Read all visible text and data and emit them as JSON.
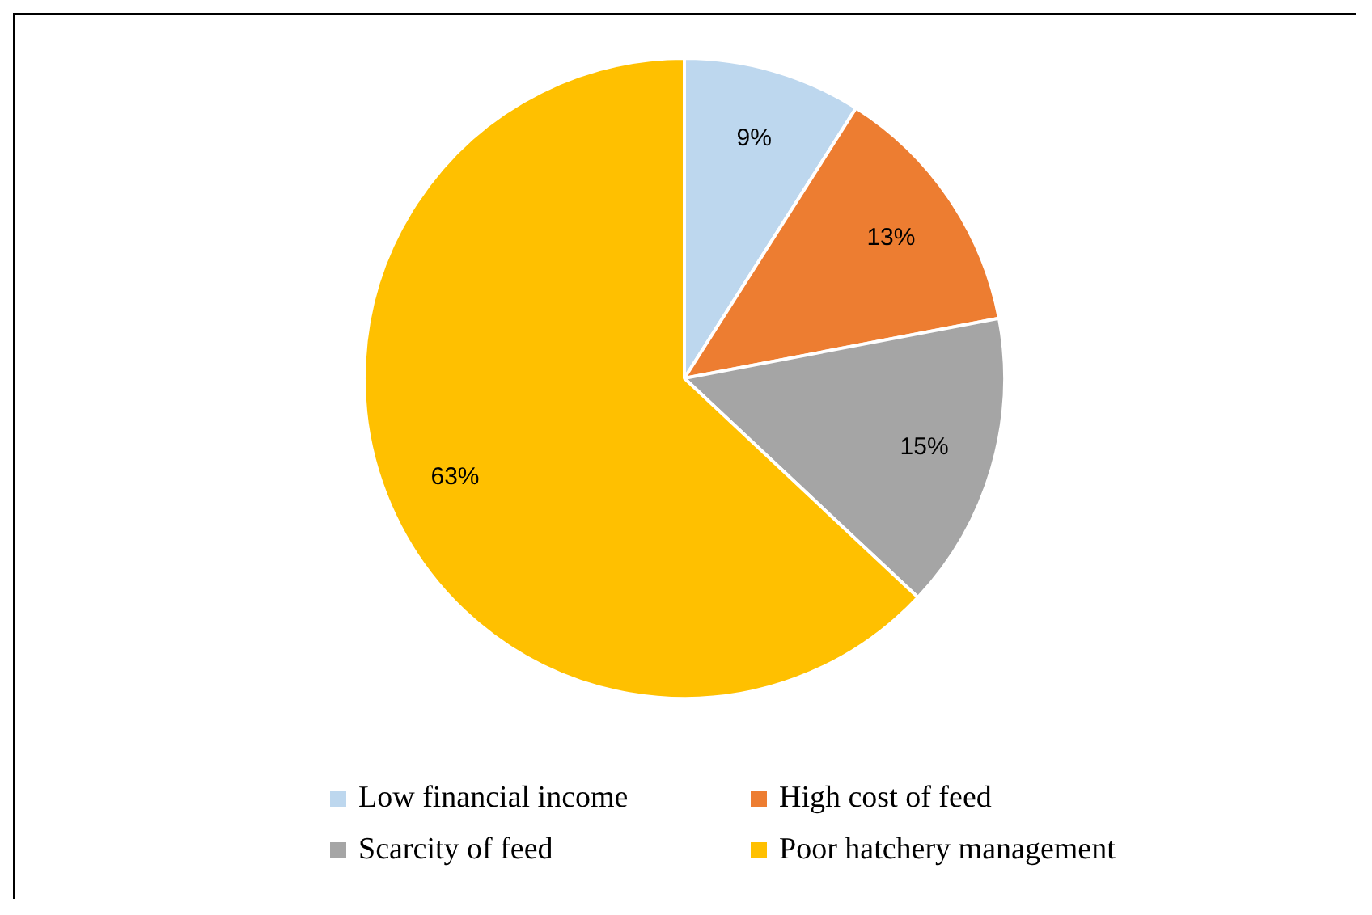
{
  "chart_data": {
    "type": "pie",
    "categories": [
      "Low financial income",
      "High cost of feed",
      "Scarcity of feed",
      "Poor hatchery management"
    ],
    "values": [
      9,
      13,
      15,
      63
    ],
    "colors": [
      "#bdd7ee",
      "#ed7d31",
      "#a5a5a5",
      "#ffc000"
    ],
    "value_labels": [
      "9%",
      "13%",
      "15%",
      "63%"
    ],
    "legend": "bottom"
  }
}
